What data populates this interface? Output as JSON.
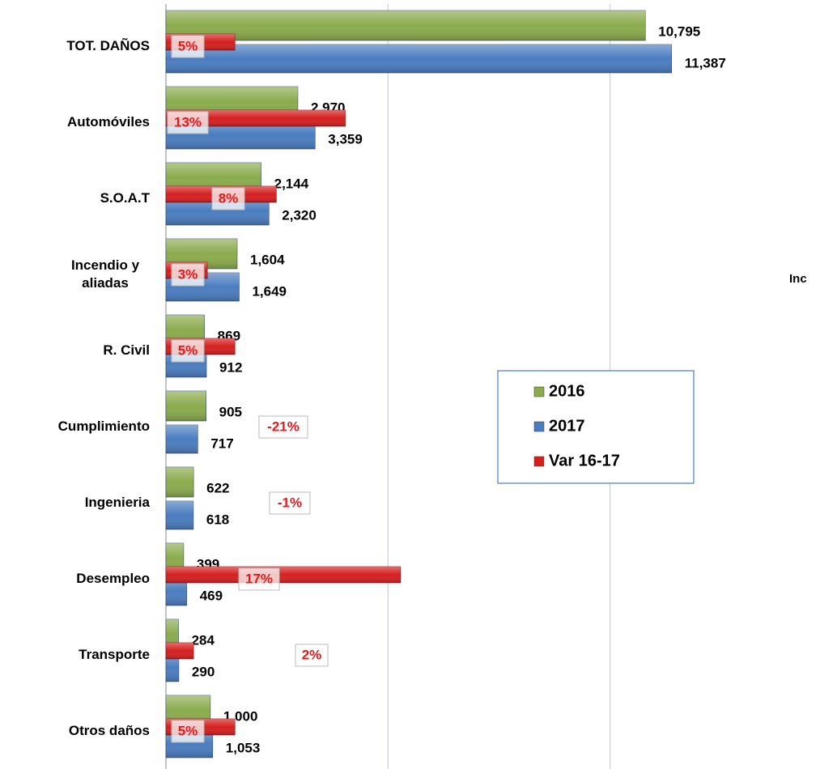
{
  "chart_data": {
    "type": "bar",
    "categories": [
      "TOT. DAÑOS",
      "Automóviles",
      "S.O.A.T",
      "Incendio y aliadas",
      "R. Civil",
      "Cumplimiento",
      "Ingenieria",
      "Desempleo",
      "Transporte",
      "Otros daños"
    ],
    "series": [
      {
        "name": "2016",
        "color": "#8bab4c",
        "values": [
          10795,
          2970,
          2144,
          1604,
          869,
          905,
          622,
          399,
          284,
          1000
        ],
        "value_labels": [
          "10,795",
          "2,970",
          "2,144",
          "1,604",
          "869",
          "905",
          "622",
          "399",
          "284",
          "1,000"
        ]
      },
      {
        "name": "2017",
        "color": "#4a7dc0",
        "values": [
          11387,
          3359,
          2320,
          1649,
          912,
          717,
          618,
          469,
          290,
          1053
        ],
        "value_labels": [
          "11,387",
          "3,359",
          "2,320",
          "1,649",
          "912",
          "717",
          "618",
          "469",
          "290",
          "1,053"
        ]
      },
      {
        "name": "Var 16-17",
        "color": "#d61f1f",
        "axis": "y2",
        "values": [
          5,
          13,
          8,
          3,
          5,
          -21,
          -1,
          17,
          2,
          5
        ],
        "value_labels": [
          "5%",
          "13%",
          "8%",
          "3%",
          "5%",
          "-21%",
          "-1%",
          "17%",
          "2%",
          "5%"
        ]
      }
    ],
    "xlim": [
      0,
      14600
    ],
    "xticks": [
      0,
      5000,
      10000
    ],
    "y2lim": [
      0,
      47
    ],
    "grid": true,
    "annotation": "Inc"
  }
}
